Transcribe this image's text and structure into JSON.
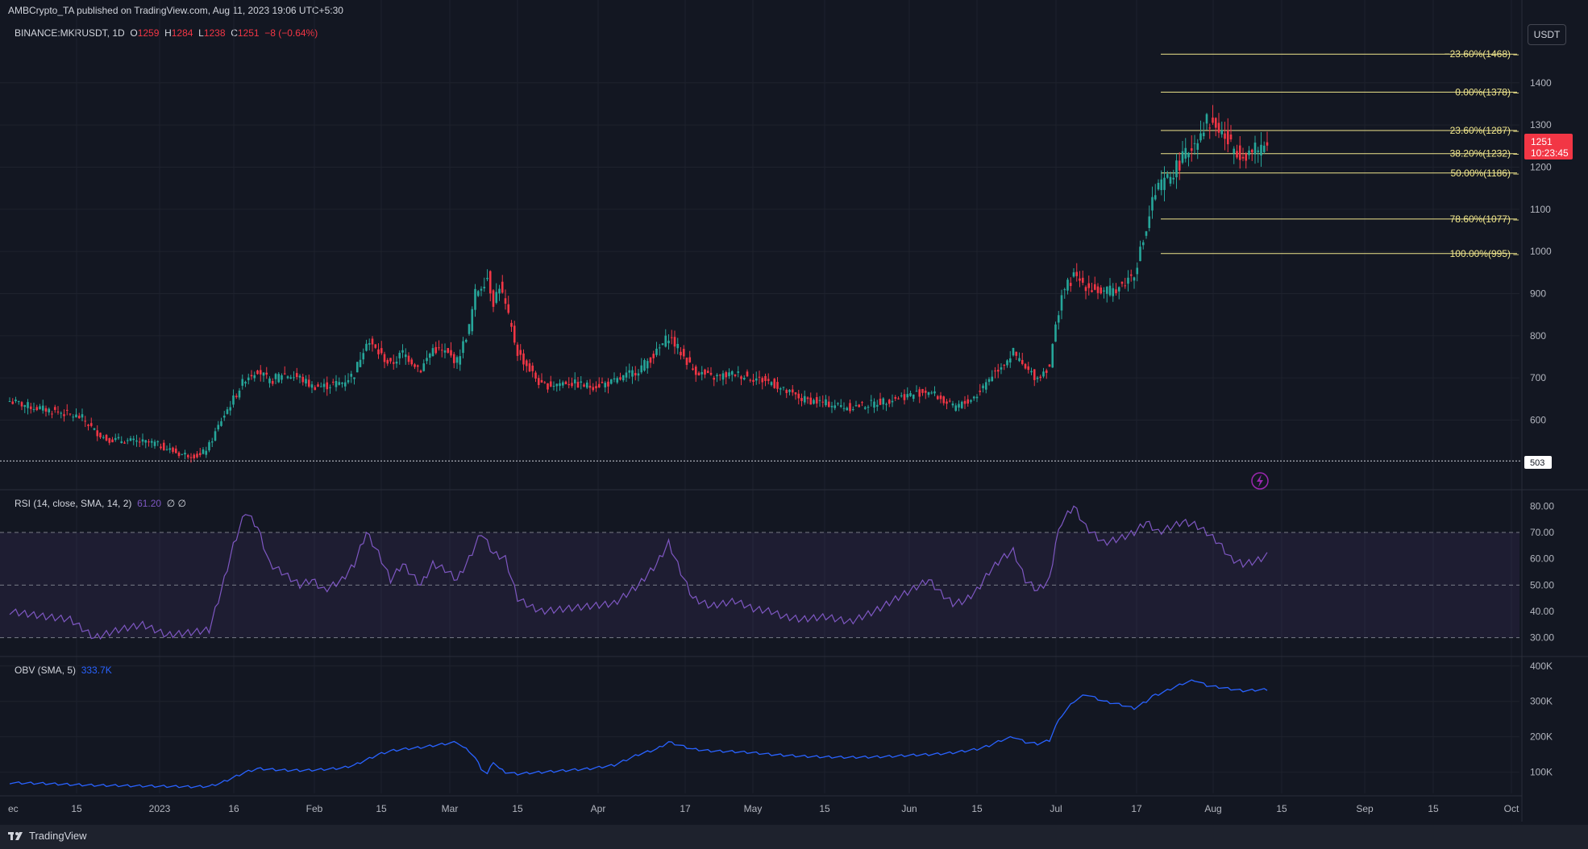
{
  "header": {
    "published": "AMBCrypto_TA published on TradingView.com, Aug 11, 2023 19:06 UTC+5:30",
    "symbol": "BINANCE:MKRUSDT, 1D",
    "open_label": "O",
    "open": "1259",
    "high_label": "H",
    "high": "1284",
    "low_label": "L",
    "low": "1238",
    "close_label": "C",
    "close": "1251",
    "change": "−8 (−0.64%)",
    "currency": "USDT"
  },
  "price_badge": {
    "price": "1251",
    "countdown": "10:23:45"
  },
  "low_marker": "503",
  "colors": {
    "up": "#26a69a",
    "down": "#f23645",
    "fib": "#f0e68c",
    "rsi": "#7e57c2",
    "obv": "#2962ff",
    "bg": "#131722"
  },
  "rsi_panel": {
    "label": "RSI (14, close, SMA, 14, 2)",
    "value": "61.20",
    "extra": "∅ ∅"
  },
  "obv_panel": {
    "label": "OBV (SMA, 5)",
    "value": "333.7K"
  },
  "footer": {
    "brand": "TradingView"
  },
  "chart_data": [
    {
      "type": "candlestick",
      "title": "BINANCE:MKRUSDT, 1D",
      "ylim": [
        450,
        1520
      ],
      "yticks": [
        600,
        700,
        800,
        900,
        1000,
        1100,
        1200,
        1300,
        1400
      ],
      "x_labels": [
        "ec",
        "15",
        "2023",
        "16",
        "Feb",
        "15",
        "Mar",
        "15",
        "Apr",
        "17",
        "May",
        "15",
        "Jun",
        "15",
        "Jul",
        "17",
        "Aug",
        "15",
        "Sep",
        "15",
        "Oct"
      ],
      "fib_levels": [
        {
          "label": "−23.60%(1468)",
          "price": 1468
        },
        {
          "label": "0.00%(1378)",
          "price": 1378
        },
        {
          "label": "23.60%(1287)",
          "price": 1287
        },
        {
          "label": "38.20%(1232)",
          "price": 1232
        },
        {
          "label": "50.00%(1186)",
          "price": 1186
        },
        {
          "label": "78.60%(1077)",
          "price": 1077
        },
        {
          "label": "100.00%(995)",
          "price": 995
        }
      ],
      "horizontal_line": 503,
      "close_keypoints": [
        [
          0,
          645
        ],
        [
          8,
          630
        ],
        [
          16,
          620
        ],
        [
          24,
          605
        ],
        [
          28,
          575
        ],
        [
          32,
          555
        ],
        [
          40,
          550
        ],
        [
          48,
          545
        ],
        [
          56,
          520
        ],
        [
          63,
          515
        ],
        [
          66,
          540
        ],
        [
          70,
          600
        ],
        [
          74,
          650
        ],
        [
          78,
          700
        ],
        [
          82,
          720
        ],
        [
          86,
          690
        ],
        [
          90,
          710
        ],
        [
          96,
          700
        ],
        [
          100,
          680
        ],
        [
          104,
          680
        ],
        [
          110,
          690
        ],
        [
          114,
          710
        ],
        [
          118,
          790
        ],
        [
          122,
          760
        ],
        [
          126,
          730
        ],
        [
          130,
          760
        ],
        [
          136,
          720
        ],
        [
          140,
          770
        ],
        [
          144,
          760
        ],
        [
          148,
          740
        ],
        [
          150,
          780
        ],
        [
          152,
          820
        ],
        [
          154,
          900
        ],
        [
          156,
          920
        ],
        [
          158,
          940
        ],
        [
          160,
          880
        ],
        [
          162,
          920
        ],
        [
          164,
          870
        ],
        [
          168,
          760
        ],
        [
          172,
          720
        ],
        [
          176,
          680
        ],
        [
          184,
          690
        ],
        [
          192,
          680
        ],
        [
          200,
          690
        ],
        [
          208,
          720
        ],
        [
          214,
          760
        ],
        [
          218,
          800
        ],
        [
          222,
          760
        ],
        [
          226,
          720
        ],
        [
          232,
          700
        ],
        [
          240,
          710
        ],
        [
          246,
          700
        ],
        [
          252,
          690
        ],
        [
          256,
          670
        ],
        [
          262,
          650
        ],
        [
          270,
          640
        ],
        [
          278,
          630
        ],
        [
          286,
          640
        ],
        [
          292,
          650
        ],
        [
          298,
          660
        ],
        [
          304,
          670
        ],
        [
          308,
          650
        ],
        [
          312,
          630
        ],
        [
          316,
          640
        ],
        [
          320,
          660
        ],
        [
          324,
          700
        ],
        [
          328,
          730
        ],
        [
          332,
          760
        ],
        [
          336,
          720
        ],
        [
          340,
          700
        ],
        [
          344,
          730
        ],
        [
          346,
          820
        ],
        [
          348,
          900
        ],
        [
          352,
          940
        ],
        [
          356,
          920
        ],
        [
          362,
          900
        ],
        [
          368,
          920
        ],
        [
          372,
          950
        ],
        [
          376,
          1050
        ],
        [
          378,
          1120
        ],
        [
          380,
          1150
        ],
        [
          384,
          1180
        ],
        [
          388,
          1220
        ],
        [
          392,
          1260
        ],
        [
          396,
          1310
        ],
        [
          400,
          1290
        ],
        [
          404,
          1250
        ],
        [
          408,
          1230
        ],
        [
          412,
          1240
        ],
        [
          416,
          1251
        ]
      ],
      "last": {
        "open": 1259,
        "high": 1284,
        "low": 1238,
        "close": 1251
      }
    },
    {
      "type": "line",
      "title": "RSI (14, close, SMA, 14, 2)",
      "ylim": [
        25,
        85
      ],
      "yticks": [
        30,
        40,
        50,
        60,
        70,
        80
      ],
      "bands": [
        30,
        50,
        70
      ],
      "keypoints": [
        [
          0,
          40
        ],
        [
          12,
          38
        ],
        [
          20,
          37
        ],
        [
          28,
          30
        ],
        [
          36,
          33
        ],
        [
          44,
          35
        ],
        [
          52,
          31
        ],
        [
          60,
          32
        ],
        [
          66,
          33
        ],
        [
          70,
          48
        ],
        [
          74,
          65
        ],
        [
          78,
          78
        ],
        [
          82,
          72
        ],
        [
          86,
          58
        ],
        [
          90,
          55
        ],
        [
          96,
          50
        ],
        [
          100,
          52
        ],
        [
          104,
          48
        ],
        [
          110,
          52
        ],
        [
          114,
          58
        ],
        [
          118,
          70
        ],
        [
          122,
          62
        ],
        [
          126,
          52
        ],
        [
          130,
          58
        ],
        [
          136,
          50
        ],
        [
          140,
          58
        ],
        [
          144,
          56
        ],
        [
          148,
          52
        ],
        [
          152,
          60
        ],
        [
          156,
          70
        ],
        [
          160,
          62
        ],
        [
          164,
          60
        ],
        [
          168,
          45
        ],
        [
          172,
          42
        ],
        [
          176,
          40
        ],
        [
          184,
          41
        ],
        [
          192,
          42
        ],
        [
          200,
          43
        ],
        [
          208,
          50
        ],
        [
          214,
          58
        ],
        [
          218,
          66
        ],
        [
          222,
          55
        ],
        [
          226,
          45
        ],
        [
          232,
          42
        ],
        [
          240,
          44
        ],
        [
          246,
          41
        ],
        [
          252,
          40
        ],
        [
          256,
          38
        ],
        [
          262,
          37
        ],
        [
          270,
          38
        ],
        [
          278,
          36
        ],
        [
          286,
          40
        ],
        [
          292,
          44
        ],
        [
          298,
          48
        ],
        [
          304,
          52
        ],
        [
          308,
          47
        ],
        [
          312,
          43
        ],
        [
          316,
          44
        ],
        [
          320,
          48
        ],
        [
          324,
          55
        ],
        [
          328,
          60
        ],
        [
          332,
          63
        ],
        [
          336,
          52
        ],
        [
          340,
          48
        ],
        [
          344,
          52
        ],
        [
          346,
          66
        ],
        [
          348,
          74
        ],
        [
          352,
          80
        ],
        [
          356,
          72
        ],
        [
          362,
          66
        ],
        [
          368,
          68
        ],
        [
          372,
          70
        ],
        [
          376,
          74
        ],
        [
          378,
          72
        ],
        [
          380,
          70
        ],
        [
          384,
          72
        ],
        [
          388,
          74
        ],
        [
          392,
          73
        ],
        [
          396,
          70
        ],
        [
          400,
          66
        ],
        [
          404,
          60
        ],
        [
          408,
          58
        ],
        [
          412,
          59
        ],
        [
          416,
          61.2
        ]
      ]
    },
    {
      "type": "line",
      "title": "OBV (SMA, 5)",
      "ylim": [
        40,
        420
      ],
      "yticks_labels": [
        {
          "v": 100,
          "label": "100K"
        },
        {
          "v": 200,
          "label": "200K"
        },
        {
          "v": 300,
          "label": "300K"
        },
        {
          "v": 400,
          "label": "400K"
        }
      ],
      "keypoints": [
        [
          0,
          70
        ],
        [
          12,
          68
        ],
        [
          20,
          65
        ],
        [
          28,
          63
        ],
        [
          36,
          62
        ],
        [
          44,
          61
        ],
        [
          52,
          60
        ],
        [
          60,
          59
        ],
        [
          66,
          60
        ],
        [
          70,
          70
        ],
        [
          74,
          85
        ],
        [
          78,
          100
        ],
        [
          82,
          110
        ],
        [
          86,
          108
        ],
        [
          90,
          106
        ],
        [
          96,
          105
        ],
        [
          100,
          106
        ],
        [
          104,
          108
        ],
        [
          110,
          112
        ],
        [
          114,
          120
        ],
        [
          118,
          135
        ],
        [
          122,
          150
        ],
        [
          126,
          160
        ],
        [
          130,
          165
        ],
        [
          136,
          170
        ],
        [
          140,
          175
        ],
        [
          144,
          180
        ],
        [
          148,
          185
        ],
        [
          150,
          170
        ],
        [
          152,
          160
        ],
        [
          154,
          140
        ],
        [
          156,
          110
        ],
        [
          158,
          95
        ],
        [
          160,
          130
        ],
        [
          162,
          110
        ],
        [
          164,
          100
        ],
        [
          168,
          95
        ],
        [
          172,
          98
        ],
        [
          176,
          100
        ],
        [
          184,
          105
        ],
        [
          192,
          110
        ],
        [
          200,
          120
        ],
        [
          208,
          150
        ],
        [
          214,
          165
        ],
        [
          218,
          185
        ],
        [
          222,
          175
        ],
        [
          226,
          165
        ],
        [
          232,
          160
        ],
        [
          240,
          158
        ],
        [
          246,
          155
        ],
        [
          252,
          150
        ],
        [
          256,
          148
        ],
        [
          262,
          145
        ],
        [
          270,
          143
        ],
        [
          278,
          142
        ],
        [
          286,
          143
        ],
        [
          292,
          145
        ],
        [
          298,
          148
        ],
        [
          304,
          150
        ],
        [
          308,
          152
        ],
        [
          312,
          155
        ],
        [
          316,
          160
        ],
        [
          320,
          165
        ],
        [
          324,
          175
        ],
        [
          328,
          190
        ],
        [
          332,
          200
        ],
        [
          336,
          185
        ],
        [
          340,
          180
        ],
        [
          344,
          190
        ],
        [
          346,
          230
        ],
        [
          348,
          260
        ],
        [
          352,
          300
        ],
        [
          356,
          320
        ],
        [
          362,
          300
        ],
        [
          368,
          290
        ],
        [
          372,
          280
        ],
        [
          376,
          300
        ],
        [
          378,
          315
        ],
        [
          380,
          320
        ],
        [
          384,
          335
        ],
        [
          388,
          350
        ],
        [
          392,
          360
        ],
        [
          396,
          345
        ],
        [
          400,
          340
        ],
        [
          404,
          335
        ],
        [
          408,
          330
        ],
        [
          412,
          332
        ],
        [
          416,
          333.7
        ]
      ]
    }
  ]
}
